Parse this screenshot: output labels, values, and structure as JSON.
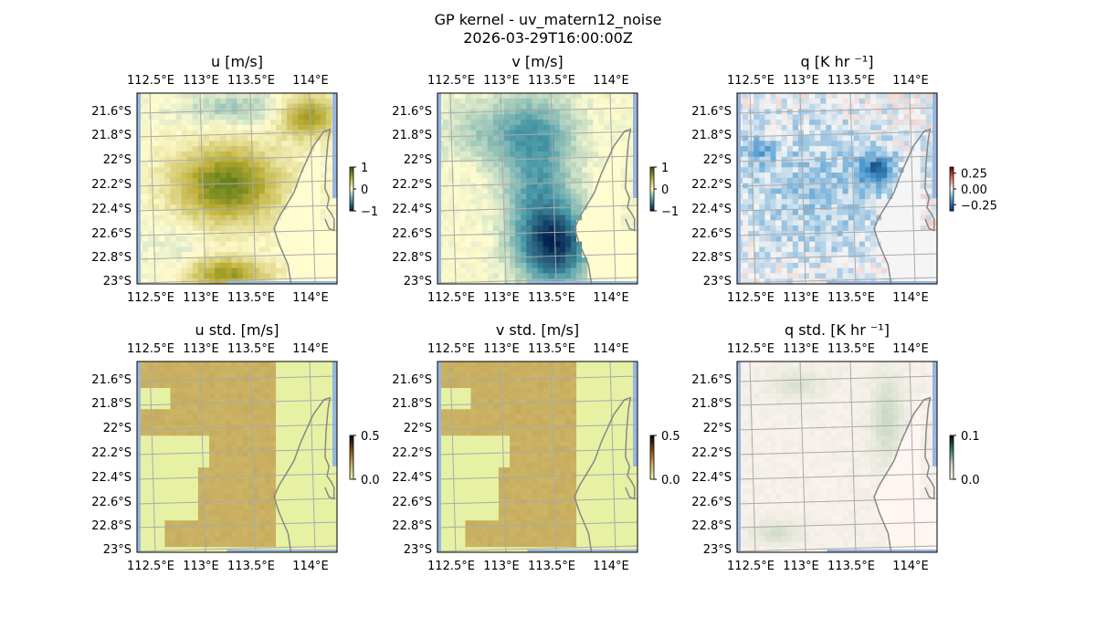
{
  "chart_data": {
    "type": "heatmap",
    "suptitle": [
      "GP kernel - uv_matern12_noise",
      "2026-03-29T16:00:00Z"
    ],
    "x_ticks": [
      "112.5°E",
      "113°E",
      "113.5°E",
      "114°E"
    ],
    "y_ticks": [
      "21.6°S",
      "21.8°S",
      "22°S",
      "22.2°S",
      "22.4°S",
      "22.6°S",
      "22.8°S",
      "23°S"
    ],
    "xlim": [
      112.42,
      114.18
    ],
    "ylim": [
      -23.02,
      -21.47
    ],
    "grid": true,
    "panels": [
      {
        "title": "u [m/s]",
        "field": "u",
        "colorbar": {
          "range": [
            -1,
            1
          ],
          "ticks": [
            "1",
            "0",
            "−1"
          ],
          "colors": [
            "#00204d",
            "#4a9aa8",
            "#fffcd0",
            "#b8aa30",
            "#1a5a10"
          ]
        }
      },
      {
        "title": "v [m/s]",
        "field": "v",
        "colorbar": {
          "range": [
            -1,
            1
          ],
          "ticks": [
            "1",
            "0",
            "−1"
          ],
          "colors": [
            "#00204d",
            "#4a9aa8",
            "#fffcd0",
            "#b8aa30",
            "#1a5a10"
          ]
        }
      },
      {
        "title": "q [K hr ⁻¹]",
        "field": "q",
        "colorbar": {
          "range": [
            -0.35,
            0.35
          ],
          "ticks": [
            "0.25",
            "0.00",
            "−0.25"
          ],
          "colors": [
            "#08306b",
            "#4a98d0",
            "#f5f5f5",
            "#e07050",
            "#67000d"
          ]
        }
      },
      {
        "title": "u std. [m/s]",
        "field": "ustd",
        "colorbar": {
          "range": [
            0,
            0.5
          ],
          "ticks": [
            "0.5",
            "0.0"
          ],
          "colors": [
            "#e8f5a8",
            "#c9b060",
            "#8a4a10",
            "#000000"
          ]
        }
      },
      {
        "title": "v std. [m/s]",
        "field": "vstd",
        "colorbar": {
          "range": [
            0,
            0.5
          ],
          "ticks": [
            "0.5",
            "0.0"
          ],
          "colors": [
            "#e8f5a8",
            "#c9b060",
            "#8a4a10",
            "#000000"
          ]
        }
      },
      {
        "title": "q std. [K hr ⁻¹]",
        "field": "qstd",
        "colorbar": {
          "range": [
            0,
            0.1
          ],
          "ticks": [
            "0.1",
            "0.0"
          ],
          "colors": [
            "#fff5f2",
            "#c8d8c0",
            "#3a7a6a",
            "#000000"
          ]
        }
      }
    ]
  }
}
